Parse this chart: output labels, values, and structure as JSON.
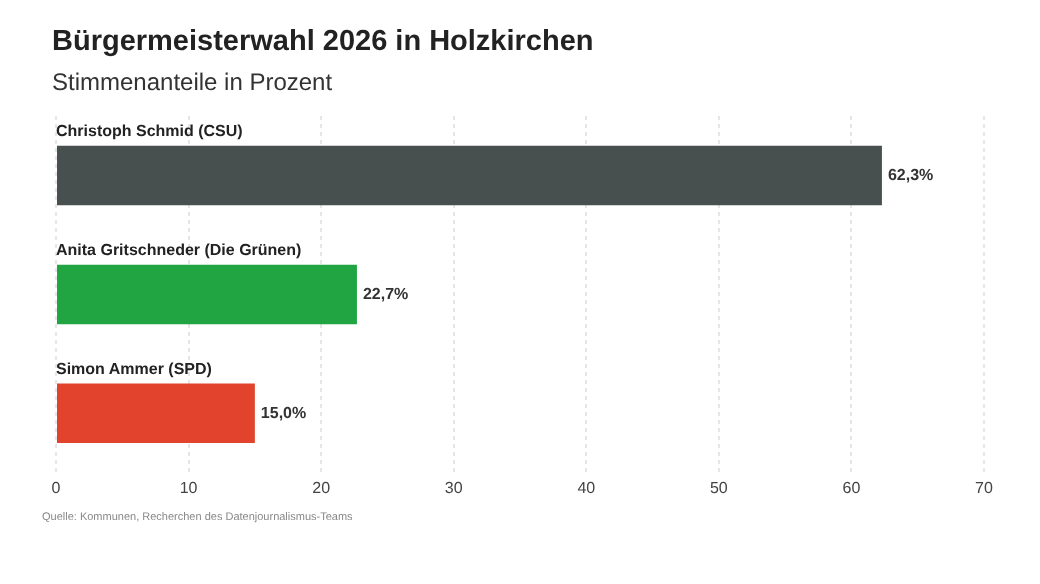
{
  "chart_data": {
    "type": "bar",
    "orientation": "horizontal",
    "title": "Bürgermeisterwahl 2026 in Holzkirchen",
    "subtitle": "Stimmenanteile in Prozent",
    "categories": [
      "Christoph Schmid (CSU)",
      "Anita Gritschneder (Die Grünen)",
      "Simon Ammer (SPD)"
    ],
    "values": [
      62.3,
      22.7,
      15.0
    ],
    "colors": [
      "#474f4f",
      "#21a543",
      "#e2432c"
    ],
    "value_labels": [
      "62,3%",
      "22,7%",
      "15,0%"
    ],
    "xlim": [
      0,
      70
    ],
    "xticks": [
      0,
      10,
      20,
      30,
      40,
      50,
      60,
      70
    ],
    "grid": "x",
    "legend": false,
    "annotations": [
      "Quelle: Kommunen, Recherchen des Datenjournalismus-Teams"
    ]
  }
}
